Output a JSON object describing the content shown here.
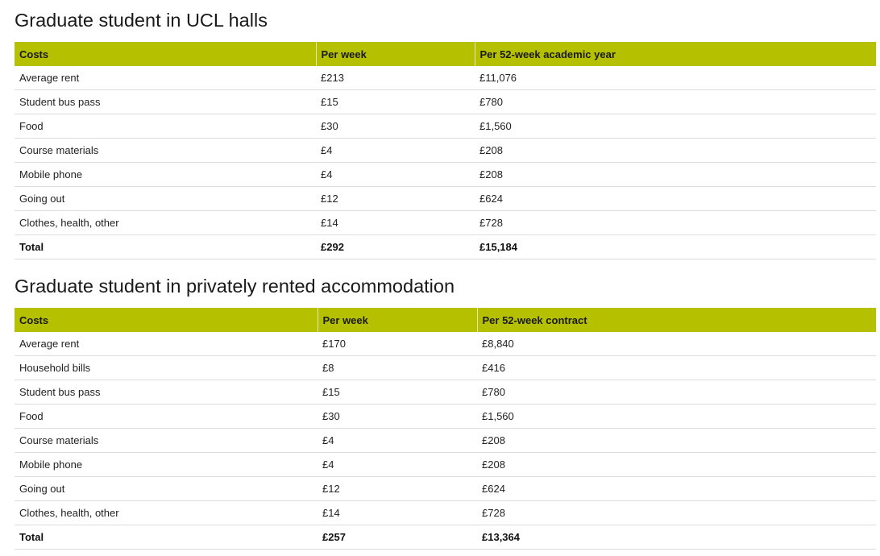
{
  "sections": [
    {
      "title": "Graduate student in UCL halls",
      "headers": [
        "Costs",
        "Per week",
        "Per 52-week academic year"
      ],
      "rows": [
        [
          "Average rent",
          "£213",
          "£11,076"
        ],
        [
          "Student bus pass",
          "£15",
          "£780"
        ],
        [
          "Food",
          "£30",
          "£1,560"
        ],
        [
          "Course materials",
          "£4",
          "£208"
        ],
        [
          "Mobile phone",
          "£4",
          "£208"
        ],
        [
          "Going out",
          "£12",
          "£624"
        ],
        [
          "Clothes, health, other",
          "£14",
          "£728"
        ]
      ],
      "total": [
        "Total",
        "£292",
        "£15,184"
      ]
    },
    {
      "title": "Graduate student in privately rented accommodation",
      "headers": [
        "Costs",
        "Per week",
        "Per 52-week contract"
      ],
      "rows": [
        [
          "Average rent",
          "£170",
          "£8,840"
        ],
        [
          "Household bills",
          "£8",
          "£416"
        ],
        [
          "Student bus pass",
          "£15",
          "£780"
        ],
        [
          "Food",
          "£30",
          "£1,560"
        ],
        [
          "Course materials",
          "£4",
          "£208"
        ],
        [
          "Mobile phone",
          "£4",
          "£208"
        ],
        [
          "Going out",
          "£12",
          "£624"
        ],
        [
          "Clothes, health, other",
          "£14",
          "£728"
        ]
      ],
      "total": [
        "Total",
        "£257",
        "£13,364"
      ]
    }
  ],
  "colors": {
    "header_background": "#b5c000",
    "row_divider": "#dcdcdc"
  }
}
